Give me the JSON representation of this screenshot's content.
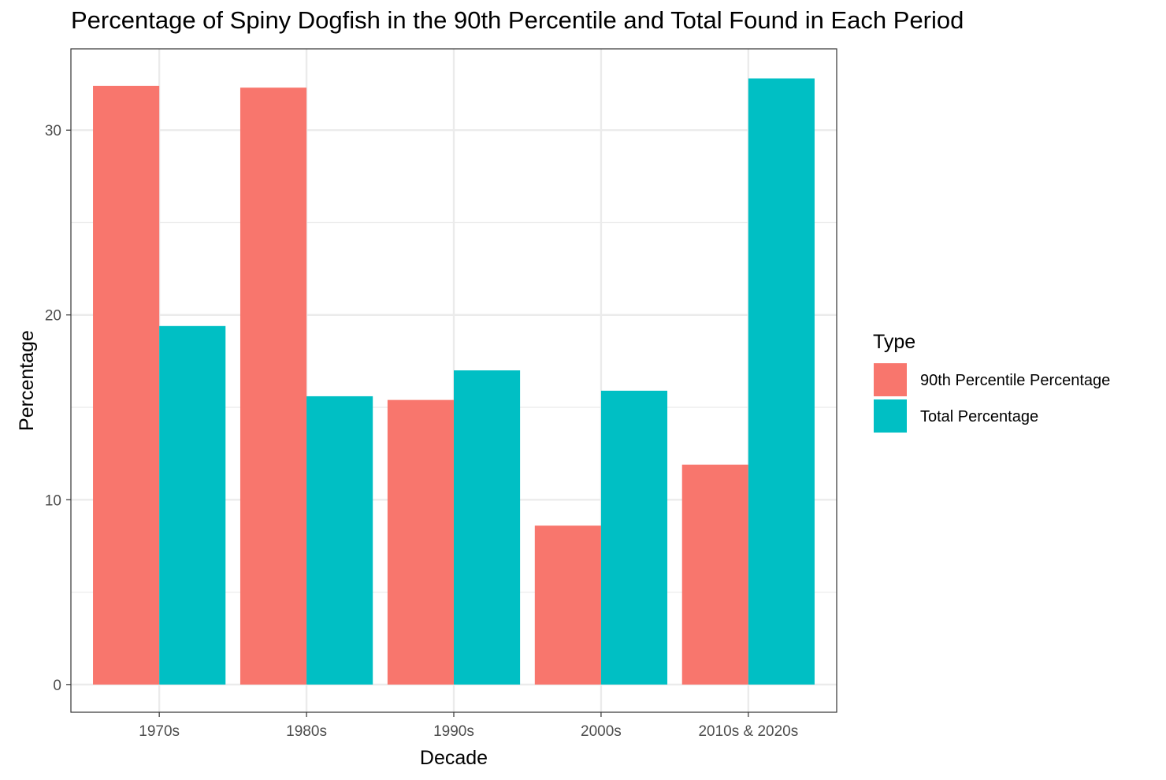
{
  "chart_data": {
    "type": "bar",
    "title": "Percentage of Spiny Dogfish in the 90th Percentile and Total Found in Each Period",
    "xlabel": "Decade",
    "ylabel": "Percentage",
    "categories": [
      "1970s",
      "1980s",
      "1990s",
      "2000s",
      "2010s & 2020s"
    ],
    "series": [
      {
        "name": "90th Percentile Percentage",
        "color": "#F8766D",
        "values": [
          32.4,
          32.3,
          15.4,
          8.6,
          11.9
        ]
      },
      {
        "name": "Total Percentage",
        "color": "#00BFC4",
        "values": [
          19.4,
          15.6,
          17.0,
          15.9,
          32.8
        ]
      }
    ],
    "ylim": [
      -1.5,
      34.4
    ],
    "yticks": [
      0,
      10,
      20,
      30
    ],
    "legend": {
      "title": "Type",
      "position": "right"
    },
    "grid": true
  }
}
